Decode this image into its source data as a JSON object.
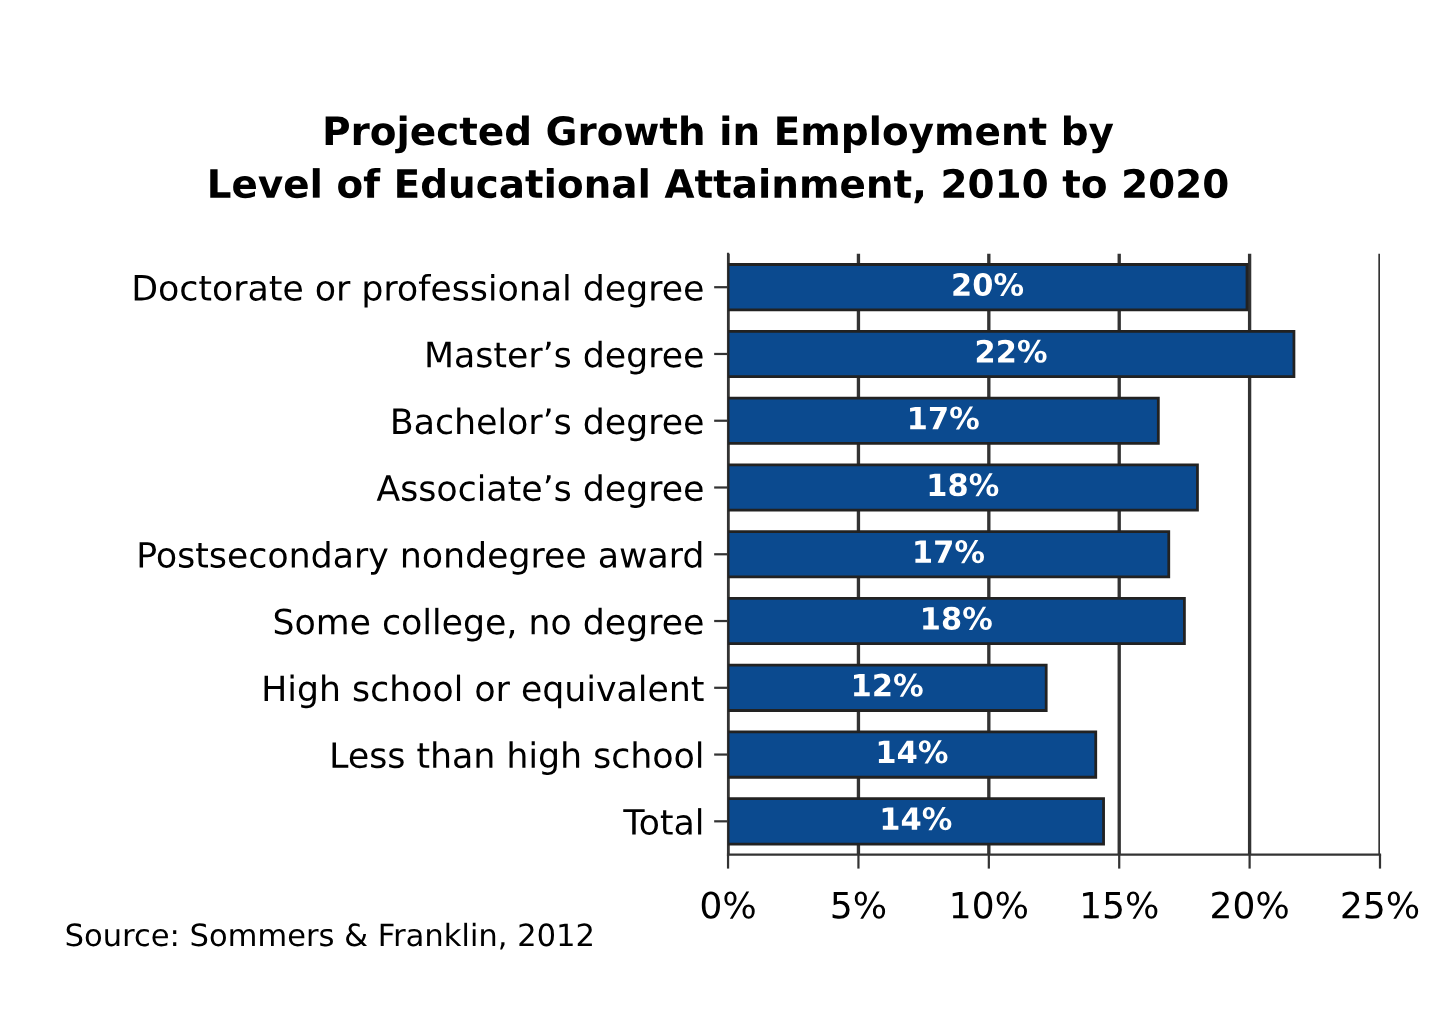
{
  "chart_data": {
    "type": "bar",
    "orientation": "horizontal",
    "title": "Projected Growth in Employment by\nLevel of Educational Attainment, 2010 to 2020",
    "categories": [
      "Doctorate or professional degree",
      "Master’s degree",
      "Bachelor’s degree",
      "Associate’s degree",
      "Postsecondary nondegree award",
      "Some college, no degree",
      "High school or equivalent",
      "Less than high school",
      "Total"
    ],
    "values": [
      19.9,
      21.7,
      16.5,
      18.0,
      16.9,
      17.5,
      12.2,
      14.1,
      14.4
    ],
    "value_labels": [
      "20%",
      "22%",
      "17%",
      "18%",
      "17%",
      "18%",
      "12%",
      "14%",
      "14%"
    ],
    "color": "#0b4a8f",
    "xlim": [
      0,
      25
    ],
    "xticks": [
      {
        "value": 0,
        "label": "0%"
      },
      {
        "value": 5,
        "label": "5%"
      },
      {
        "value": 10,
        "label": "10%"
      },
      {
        "value": 15,
        "label": "15%"
      },
      {
        "value": 20,
        "label": "20%"
      },
      {
        "value": 25,
        "label": "25%"
      }
    ],
    "grid": "x",
    "annotations": [
      "Source: Sommers & Franklin, 2012"
    ]
  }
}
